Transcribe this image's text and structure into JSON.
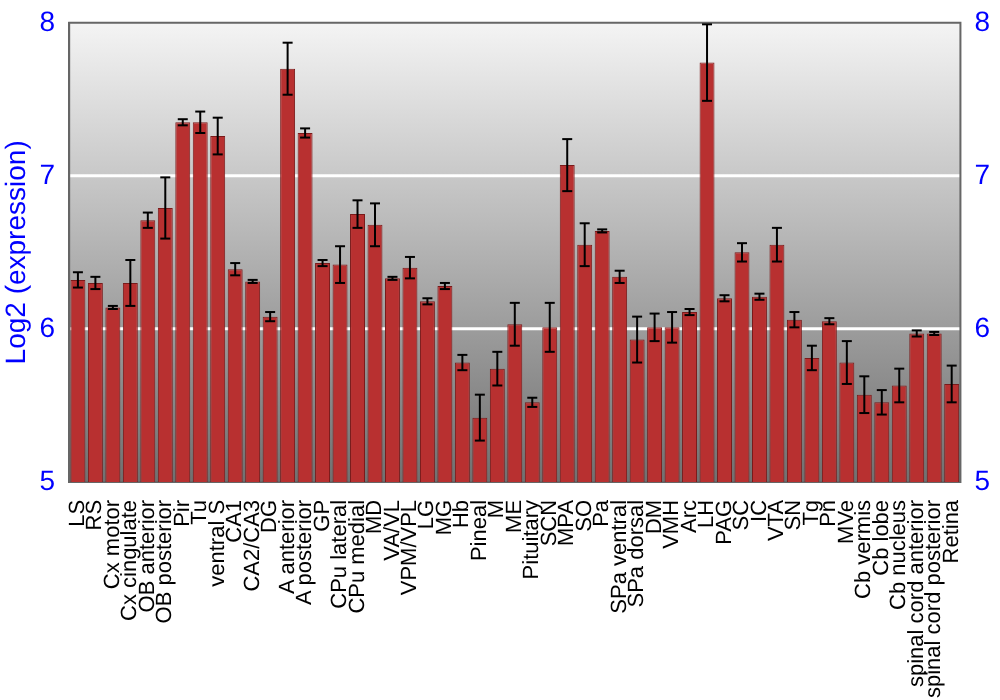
{
  "chart_data": {
    "type": "bar",
    "ylabel": "Log2 (expression)",
    "categories": [
      "LS",
      "RS",
      "Cx motor",
      "Cx cingulate",
      "OB anterior",
      "OB posterior",
      "Pir",
      "Tu",
      "ventral S",
      "CA1",
      "CA2/CA3",
      "DG",
      "A anterior",
      "A posterior",
      "GP",
      "CPu lateral",
      "CPu medial",
      "MD",
      "VA/VL",
      "VPM/VPL",
      "LG",
      "MG",
      "Hb",
      "Pineal",
      "M",
      "ME",
      "Pituitary",
      "SCN",
      "MPA",
      "SO",
      "Pa",
      "SPa ventral",
      "SPa dorsal",
      "DM",
      "VMH",
      "Arc",
      "LH",
      "PAG",
      "SC",
      "IC",
      "VTA",
      "SN",
      "Tg",
      "Pn",
      "MVe",
      "Cb vermis",
      "Cb lobe",
      "Cb nucleus",
      "spinal cord anterior",
      "spinal cord posterior",
      "Retina"
    ],
    "values": [
      6.32,
      6.3,
      6.14,
      6.3,
      6.71,
      6.79,
      7.35,
      7.35,
      7.26,
      6.39,
      6.31,
      6.08,
      7.7,
      7.28,
      6.43,
      6.42,
      6.75,
      6.68,
      6.33,
      6.4,
      6.18,
      6.28,
      5.78,
      5.42,
      5.74,
      6.03,
      5.52,
      6.01,
      7.07,
      6.55,
      6.64,
      6.34,
      5.93,
      6.01,
      6.01,
      6.11,
      7.74,
      6.2,
      6.5,
      6.21,
      6.55,
      6.06,
      5.81,
      6.05,
      5.78,
      5.57,
      5.52,
      5.63,
      5.97,
      5.97,
      5.64
    ],
    "errors": [
      0.05,
      0.04,
      0.01,
      0.15,
      0.05,
      0.2,
      0.02,
      0.07,
      0.12,
      0.04,
      0.01,
      0.03,
      0.17,
      0.03,
      0.02,
      0.12,
      0.09,
      0.14,
      0.01,
      0.07,
      0.02,
      0.02,
      0.05,
      0.15,
      0.11,
      0.14,
      0.03,
      0.16,
      0.17,
      0.14,
      0.01,
      0.04,
      0.15,
      0.09,
      0.1,
      0.02,
      0.25,
      0.02,
      0.06,
      0.02,
      0.11,
      0.05,
      0.08,
      0.02,
      0.14,
      0.12,
      0.08,
      0.11,
      0.02,
      0.01,
      0.12
    ],
    "color": "#b83030",
    "ylim": [
      5,
      8
    ],
    "yticks": [
      5,
      6,
      7,
      8
    ],
    "y2lim": [
      5,
      8
    ],
    "y2ticks": [
      5,
      6,
      7,
      8
    ],
    "grid": "y",
    "legend": false
  }
}
